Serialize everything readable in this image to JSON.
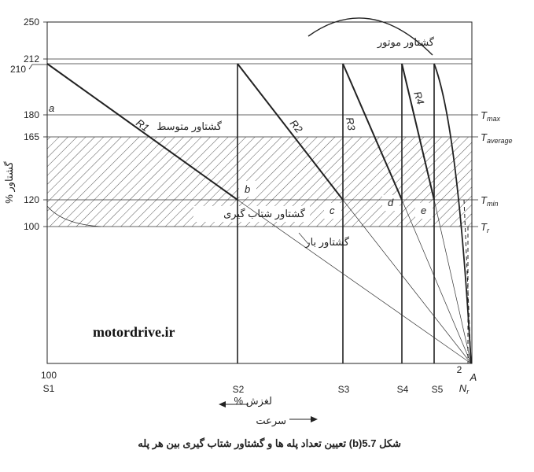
{
  "y_ticks": [
    "250",
    "212",
    "210",
    "180",
    "165",
    "120",
    "100"
  ],
  "y_axis_label": "گشتاور %",
  "x_start_value": "100",
  "x_end_value": "2",
  "step_labels": [
    "S1",
    "S2",
    "S3",
    "S4",
    "S5"
  ],
  "nr_label": "N",
  "nr_sub": "r",
  "a_end_label": "A",
  "segment_labels": [
    "R1",
    "R2",
    "R3",
    "R4"
  ],
  "point_labels": {
    "a": "a",
    "b": "b",
    "c": "c",
    "d": "d",
    "e": "e"
  },
  "right_labels": [
    {
      "main": "T",
      "sub": "max"
    },
    {
      "main": "T",
      "sub": "average"
    },
    {
      "main": "T",
      "sub": "min"
    },
    {
      "main": "T",
      "sub": "r"
    }
  ],
  "curve_labels": {
    "motor": "گشتاور موتور",
    "average": "گشتاور متوسط",
    "accel": "گشتاور شتاب گیری",
    "load": "گشتاور بار"
  },
  "watermark": "motordrive.ir",
  "slip_label": "لغزش %",
  "speed_label": "سرعت",
  "caption": "شکل 5.7(b) تعیین تعداد پله ها و گشتاور شتاب گیری بین هر پله"
}
